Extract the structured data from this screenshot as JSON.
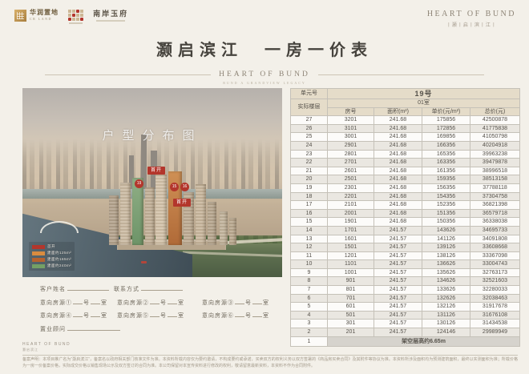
{
  "brand": {
    "cr_land_cn": "华润置地",
    "cr_land_en": "CR LAND",
    "partner_logo": "南岸玉府",
    "heart_of_bund": "HEART OF BUND",
    "project_cn_spaced": "丨灏丨启丨滨丨江丨"
  },
  "title": "灏启滨江　一房一价表",
  "divider": {
    "en": "HEART OF BUND",
    "sub": "BUND A GRANDVIEW LEGACY"
  },
  "photo": {
    "watermark": "户型分布图",
    "tag_first_release": "首开",
    "badge_19": "19",
    "badge_15": "15",
    "badge_16": "16",
    "legend": [
      {
        "color": "#b3362c",
        "label": "首开"
      },
      {
        "color": "#d98c3f",
        "label": "建面约125m²"
      },
      {
        "color": "#b5622f",
        "label": "建面约165m²"
      },
      {
        "color": "#74a065",
        "label": "建面约240m²"
      }
    ]
  },
  "table": {
    "unit_label": "单元号",
    "unit_value": "19号",
    "floor_label": "实际楼层",
    "room_group": "01室",
    "columns": [
      "房号",
      "面积(m²)",
      "单价(元/m²)",
      "总价(元)"
    ],
    "rows": [
      {
        "floor": "27",
        "room": "3201",
        "area": "241.68",
        "unit": "175856",
        "total": "42500878"
      },
      {
        "floor": "26",
        "room": "3101",
        "area": "241.68",
        "unit": "172856",
        "total": "41775838"
      },
      {
        "floor": "25",
        "room": "3001",
        "area": "241.68",
        "unit": "169856",
        "total": "41050798"
      },
      {
        "floor": "24",
        "room": "2901",
        "area": "241.68",
        "unit": "166356",
        "total": "40204918"
      },
      {
        "floor": "23",
        "room": "2801",
        "area": "241.68",
        "unit": "165356",
        "total": "39963238"
      },
      {
        "floor": "22",
        "room": "2701",
        "area": "241.68",
        "unit": "163356",
        "total": "39479878"
      },
      {
        "floor": "21",
        "room": "2601",
        "area": "241.68",
        "unit": "161356",
        "total": "38996518"
      },
      {
        "floor": "20",
        "room": "2501",
        "area": "241.68",
        "unit": "159356",
        "total": "38513158"
      },
      {
        "floor": "19",
        "room": "2301",
        "area": "241.68",
        "unit": "156356",
        "total": "37788118"
      },
      {
        "floor": "18",
        "room": "2201",
        "area": "241.68",
        "unit": "154356",
        "total": "37304758"
      },
      {
        "floor": "17",
        "room": "2101",
        "area": "241.68",
        "unit": "152356",
        "total": "36821398"
      },
      {
        "floor": "16",
        "room": "2001",
        "area": "241.68",
        "unit": "151356",
        "total": "36579718"
      },
      {
        "floor": "15",
        "room": "1901",
        "area": "241.68",
        "unit": "150356",
        "total": "36338038"
      },
      {
        "floor": "14",
        "room": "1701",
        "area": "241.57",
        "unit": "143626",
        "total": "34695733"
      },
      {
        "floor": "13",
        "room": "1601",
        "area": "241.57",
        "unit": "141126",
        "total": "34091808"
      },
      {
        "floor": "12",
        "room": "1501",
        "area": "241.57",
        "unit": "139126",
        "total": "33608668"
      },
      {
        "floor": "11",
        "room": "1201",
        "area": "241.57",
        "unit": "138126",
        "total": "33367098"
      },
      {
        "floor": "10",
        "room": "1101",
        "area": "241.57",
        "unit": "136626",
        "total": "33004743"
      },
      {
        "floor": "9",
        "room": "1001",
        "area": "241.57",
        "unit": "135626",
        "total": "32763173"
      },
      {
        "floor": "8",
        "room": "901",
        "area": "241.57",
        "unit": "134626",
        "total": "32521603"
      },
      {
        "floor": "7",
        "room": "801",
        "area": "241.57",
        "unit": "133626",
        "total": "32280033"
      },
      {
        "floor": "6",
        "room": "701",
        "area": "241.57",
        "unit": "132626",
        "total": "32038463"
      },
      {
        "floor": "5",
        "room": "601",
        "area": "241.57",
        "unit": "132126",
        "total": "31917678"
      },
      {
        "floor": "4",
        "room": "501",
        "area": "241.57",
        "unit": "131126",
        "total": "31676108"
      },
      {
        "floor": "3",
        "room": "301",
        "area": "241.57",
        "unit": "130126",
        "total": "31434538"
      },
      {
        "floor": "2",
        "room": "201",
        "area": "241.57",
        "unit": "124146",
        "total": "29989949"
      }
    ],
    "last_row": {
      "floor": "1",
      "note": "架空层高约6.65m"
    }
  },
  "form": {
    "name_label": "客户姓名",
    "contact_label": "联系方式",
    "intents": [
      "意向房源①",
      "意向房源②",
      "意向房源③",
      "意向房源④",
      "意向房源⑤",
      "意向房源⑥"
    ],
    "no": "号",
    "room": "室",
    "advisor_label": "置业顾问"
  },
  "footer": {
    "caption_en": "HEART OF BUND",
    "caption_cn": "灏启滨江",
    "disclaimer": "备案声明：本项目推广名为“灏启滨江”，备案名以政府相关部门核准文件为准。本资料所载内容仅为要约邀请，不构成要约或承诺，买卖双方的权利义务以双方签署的《商品房买卖合同》及其附件等协议为准。本资料所涉及面积均为预测建筑面积，最终以实测面积为准；所载价格为一房一价备案价格，实际成交价格以销售现场公示及双方签订的合同为准。本公司保留对本宣传资料进行修改的权利，敬请留意最新资料，本资料不作为合同附件。"
  }
}
